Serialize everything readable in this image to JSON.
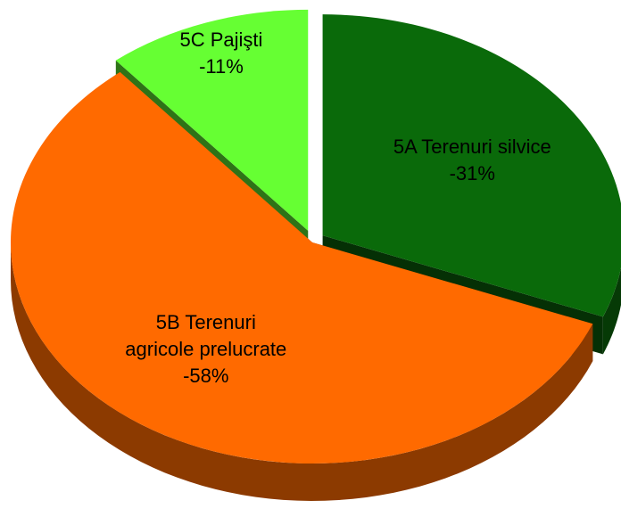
{
  "chart_data": {
    "type": "pie",
    "categories": [
      "5A Terenuri silvice",
      "5B Terenuri agricole prelucrate",
      "5C Pajişti"
    ],
    "values": [
      31,
      58,
      11
    ],
    "value_labels": [
      "-31%",
      "-58%",
      "-11%"
    ],
    "colors": [
      "#0a6a0a",
      "#ff6a00",
      "#66ff33"
    ]
  }
}
